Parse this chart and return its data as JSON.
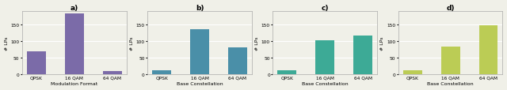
{
  "subplots": [
    {
      "title": "a)",
      "categories": [
        "QPSK",
        "16 QAM",
        "64 QAM"
      ],
      "values": [
        70,
        183,
        10
      ],
      "color": "#7B6BA8",
      "xlabel": "Modulation Format",
      "ylabel": "# LPs"
    },
    {
      "title": "b)",
      "categories": [
        "QPSK",
        "16 QAM",
        "64 QAM"
      ],
      "values": [
        12,
        137,
        82
      ],
      "color": "#4A8FA8",
      "xlabel": "Base Constellation",
      "ylabel": "# LPs"
    },
    {
      "title": "c)",
      "categories": [
        "QPSK",
        "16 QAM",
        "64 QAM"
      ],
      "values": [
        12,
        102,
        117
      ],
      "color": "#3DAA96",
      "xlabel": "Base Constellation",
      "ylabel": "# LPs"
    },
    {
      "title": "d)",
      "categories": [
        "QPSK",
        "16 QAM",
        "64 QAM"
      ],
      "values": [
        12,
        83,
        148
      ],
      "color": "#BBCC55",
      "xlabel": "Base Constellation",
      "ylabel": "# LPs"
    }
  ],
  "ylim": [
    0,
    190
  ],
  "yticks": [
    0,
    50,
    100,
    150
  ],
  "background_color": "#f0f0e8",
  "grid_color": "#ffffff",
  "label_fontsize": 4.5,
  "tick_fontsize": 4.2,
  "title_fontsize": 6.5
}
